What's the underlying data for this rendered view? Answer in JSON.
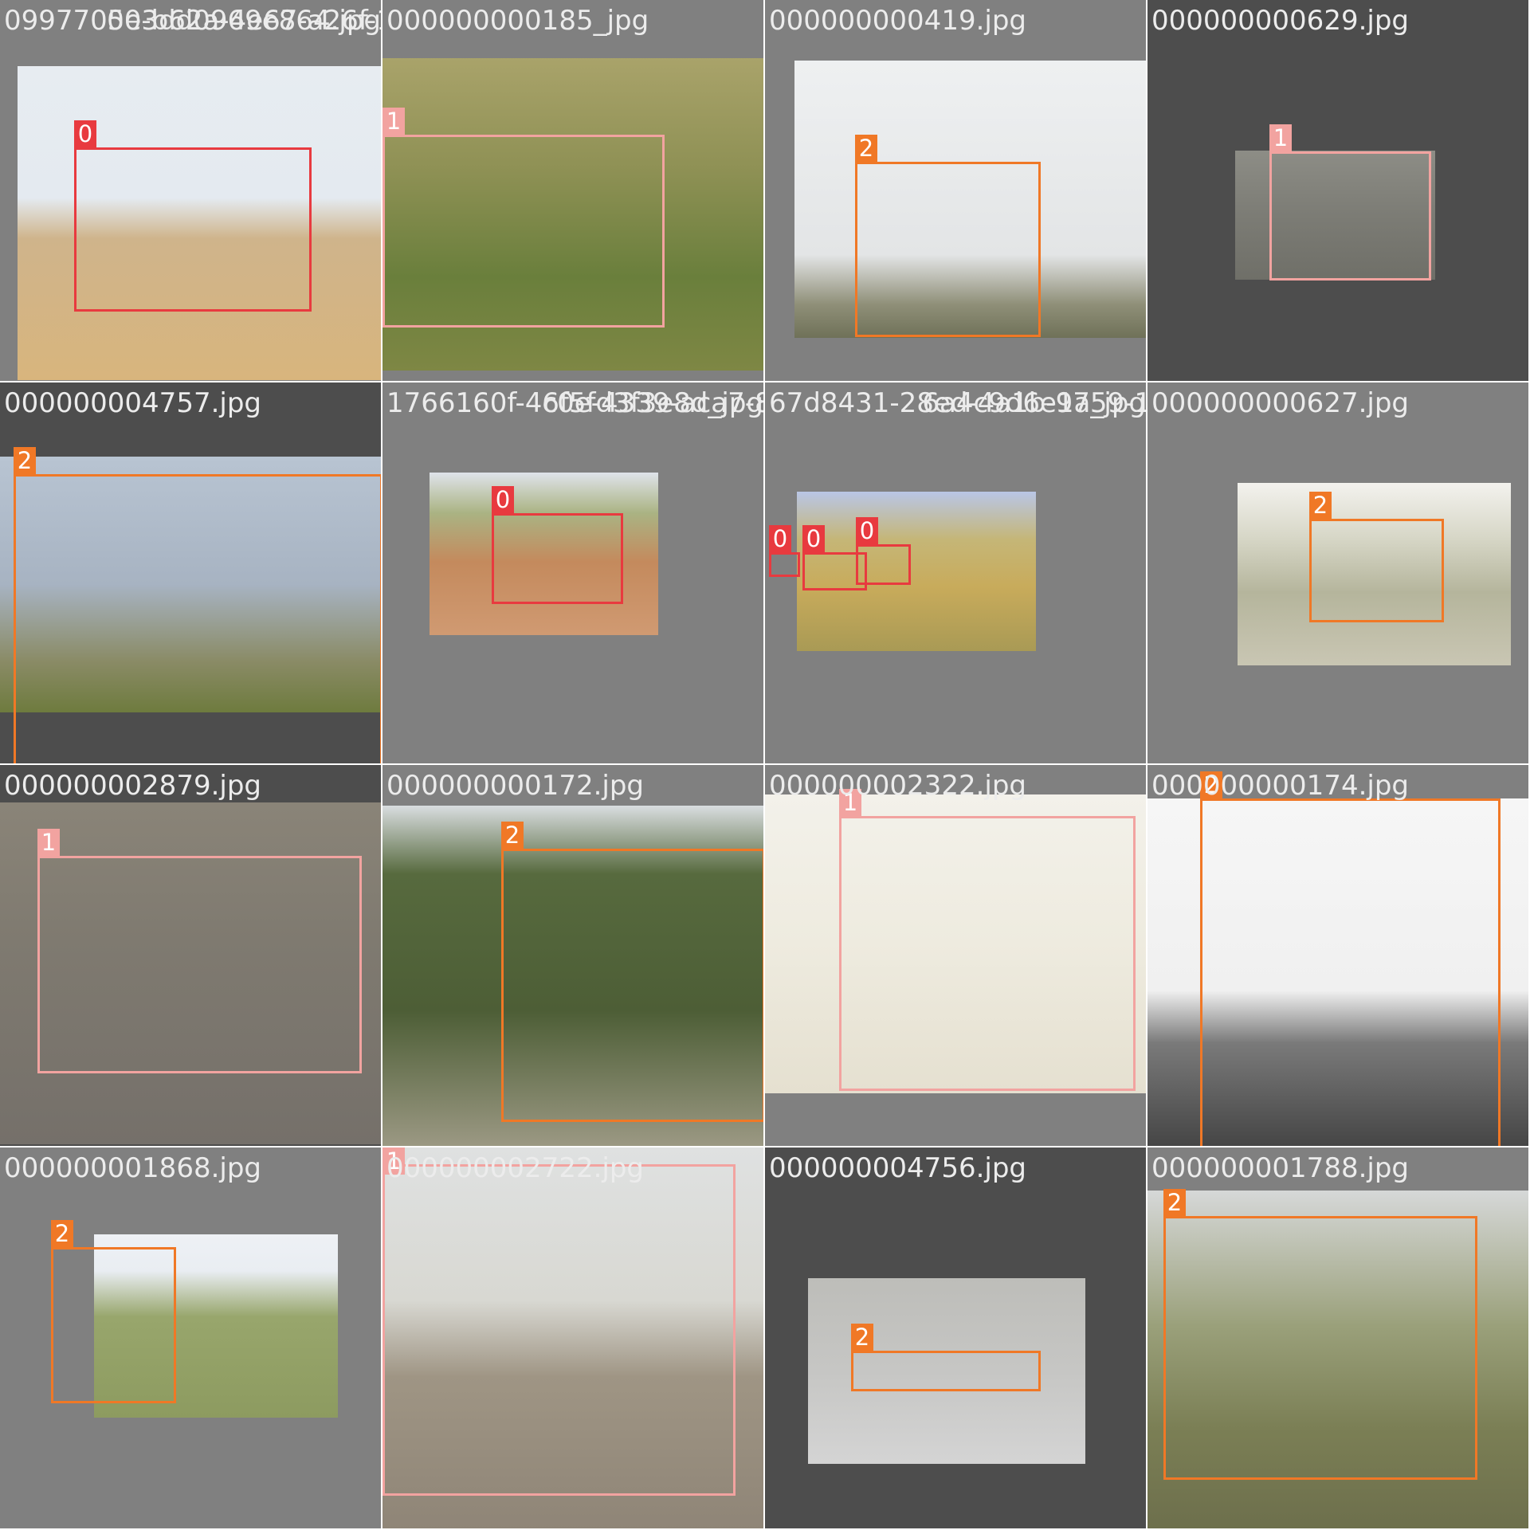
{
  "title": "",
  "colors": {
    "class_0": "#e83a3f",
    "class_1": "#f2a3a0",
    "class_2": "#f07826",
    "background_light": "#808080",
    "background_dark": "#4d4d4d"
  },
  "tiles": [
    {
      "filename": "0997705e-b62a-4e67-a26f-1",
      "filename_overlap": "003dd0969e864.jpg",
      "tile_bg": "#808080",
      "scene": "zebra-grass",
      "boxes": [
        {
          "class_id": "0",
          "label": "0"
        }
      ]
    },
    {
      "filename": "000000000185_jpg",
      "tile_bg": "#808080",
      "scene": "zebra-green",
      "boxes": [
        {
          "class_id": "1",
          "label": "1"
        }
      ]
    },
    {
      "filename": "000000000419.jpg",
      "tile_bg": "#808080",
      "scene": "giraffe-sky",
      "boxes": [
        {
          "class_id": "2",
          "label": "2"
        }
      ]
    },
    {
      "filename": "000000000629.jpg",
      "tile_bg": "#4d4d4d",
      "scene": "zebra-gray",
      "boxes": [
        {
          "class_id": "1",
          "label": "1"
        }
      ]
    },
    {
      "filename": "000000004757.jpg",
      "tile_bg": "#4d4d4d",
      "scene": "giraffe-rotated",
      "boxes": [
        {
          "class_id": "2",
          "label": "2"
        }
      ]
    },
    {
      "filename": "1766160f-4c0e-4339-aca7-8",
      "filename_overlap": "6f5fd3f3e8d_jpg",
      "tile_bg": "#808080",
      "scene": "zebra-desert",
      "boxes": [
        {
          "class_id": "0",
          "label": "0"
        }
      ]
    },
    {
      "filename": "67d8431-28ed-4a1b-9759-1",
      "filename_overlap": "6a4c9d6e1a_jpg",
      "tile_bg": "#808080",
      "scene": "zebra-savanna",
      "boxes": [
        {
          "class_id": "0",
          "label": "0"
        },
        {
          "class_id": "0",
          "label": "0"
        },
        {
          "class_id": "0",
          "label": "0"
        }
      ]
    },
    {
      "filename": "000000000627.jpg",
      "tile_bg": "#808080",
      "scene": "giraffe-bush",
      "boxes": [
        {
          "class_id": "2",
          "label": "2"
        }
      ]
    },
    {
      "filename": "000000002879.jpg",
      "tile_bg": "#4d4d4d",
      "scene": "zebra-closeup",
      "boxes": [
        {
          "class_id": "1",
          "label": "1"
        }
      ]
    },
    {
      "filename": "000000000172.jpg",
      "tile_bg": "#808080",
      "scene": "giraffe-trees",
      "boxes": [
        {
          "class_id": "2",
          "label": "2"
        }
      ]
    },
    {
      "filename": "000000002322.jpg",
      "tile_bg": "#808080",
      "scene": "zebra-bright",
      "boxes": [
        {
          "class_id": "1",
          "label": "1"
        }
      ]
    },
    {
      "filename": "000000000174.jpg",
      "tile_bg": "#808080",
      "scene": "giraffe-bw",
      "boxes": [
        {
          "class_id": "2",
          "label": "2"
        }
      ]
    },
    {
      "filename": "000000001868.jpg",
      "tile_bg": "#808080",
      "scene": "giraffe-pair",
      "boxes": [
        {
          "class_id": "2",
          "label": "2"
        }
      ]
    },
    {
      "filename": "000000002722.jpg",
      "tile_bg": "#808080",
      "scene": "zebra-large",
      "boxes": [
        {
          "class_id": "1",
          "label": "1"
        }
      ]
    },
    {
      "filename": "000000004756.jpg",
      "tile_bg": "#4d4d4d",
      "scene": "giraffe-lying",
      "boxes": [
        {
          "class_id": "2",
          "label": "2"
        }
      ]
    },
    {
      "filename": "000000001788.jpg",
      "tile_bg": "#808080",
      "scene": "giraffe-brown",
      "boxes": [
        {
          "class_id": "2",
          "label": "2"
        }
      ]
    }
  ]
}
